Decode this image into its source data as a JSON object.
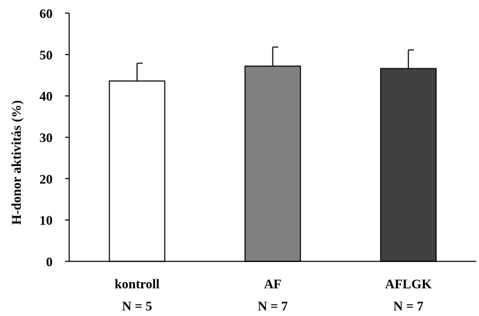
{
  "chart_data": {
    "type": "bar",
    "title": "",
    "xlabel": "",
    "ylabel": "H-donor aktivitás (%)",
    "ylim": [
      0,
      60
    ],
    "yticks": [
      0,
      10,
      20,
      30,
      40,
      50,
      60
    ],
    "grid": false,
    "categories": [
      "kontroll",
      "AF",
      "AFLGK"
    ],
    "sample_sizes": [
      "N = 5",
      "N = 7",
      "N = 7"
    ],
    "values": [
      43.6,
      47.2,
      46.6
    ],
    "errors": [
      4.3,
      4.6,
      4.5
    ],
    "bar_colors": [
      "#ffffff",
      "#808080",
      "#404040"
    ],
    "edge_color": "#000000"
  }
}
